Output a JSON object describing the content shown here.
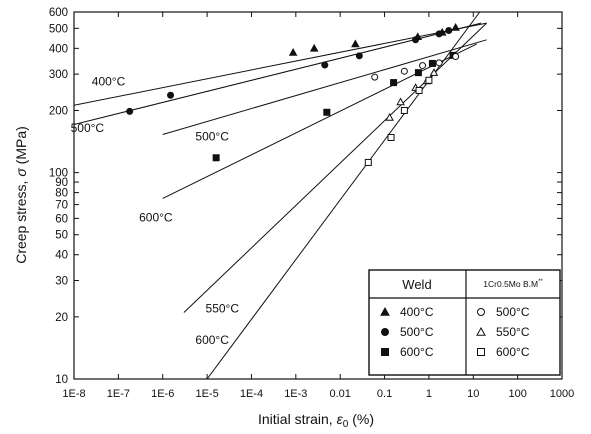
{
  "chart_data": {
    "type": "scatter",
    "xscale": "log",
    "yscale": "log",
    "xlim": [
      1e-08,
      1000
    ],
    "ylim": [
      10,
      600
    ],
    "xlabel_main": "Initial strain, ",
    "xlabel_symbol": "ε",
    "xlabel_sub": "0",
    "xlabel_unit": " (%)",
    "ylabel_main": "Creep stress, ",
    "ylabel_symbol": "σ",
    "ylabel_unit": " (MPa)",
    "x_ticks": [
      {
        "value": 1e-08,
        "label": "1E-8"
      },
      {
        "value": 1e-07,
        "label": "1E-7"
      },
      {
        "value": 1e-06,
        "label": "1E-6"
      },
      {
        "value": 1e-05,
        "label": "1E-5"
      },
      {
        "value": 0.0001,
        "label": "1E-4"
      },
      {
        "value": 0.001,
        "label": "1E-3"
      },
      {
        "value": 0.01,
        "label": "0.01"
      },
      {
        "value": 0.1,
        "label": "0.1"
      },
      {
        "value": 1,
        "label": "1"
      },
      {
        "value": 10,
        "label": "10"
      },
      {
        "value": 100,
        "label": "100"
      },
      {
        "value": 1000,
        "label": "1000"
      }
    ],
    "y_ticks": [
      {
        "value": 10,
        "label": "10"
      },
      {
        "value": 20,
        "label": "20"
      },
      {
        "value": 30,
        "label": "30"
      },
      {
        "value": 40,
        "label": "40"
      },
      {
        "value": 50,
        "label": "50"
      },
      {
        "value": 60,
        "label": "60"
      },
      {
        "value": 70,
        "label": "70"
      },
      {
        "value": 80,
        "label": "80"
      },
      {
        "value": 90,
        "label": "90"
      },
      {
        "value": 100,
        "label": "100"
      },
      {
        "value": 200,
        "label": "200"
      },
      {
        "value": 300,
        "label": "300"
      },
      {
        "value": 400,
        "label": "400"
      },
      {
        "value": 500,
        "label": "500"
      },
      {
        "value": 600,
        "label": "600"
      }
    ],
    "series": [
      {
        "name": "400°C",
        "group": "Weld",
        "marker": "triangle-filled",
        "points": [
          [
            0.00087,
            382
          ],
          [
            0.0026,
            400
          ],
          [
            0.022,
            420
          ],
          [
            0.56,
            455
          ],
          [
            2.0,
            478
          ],
          [
            4.0,
            505
          ]
        ]
      },
      {
        "name": "500°C",
        "group": "Weld",
        "marker": "circle-filled",
        "points": [
          [
            1.8e-07,
            198
          ],
          [
            1.5e-06,
            237
          ],
          [
            0.0045,
            332
          ],
          [
            0.027,
            368
          ],
          [
            0.5,
            440
          ],
          [
            1.7,
            470
          ],
          [
            2.8,
            488
          ]
        ]
      },
      {
        "name": "600°C",
        "group": "Weld",
        "marker": "square-filled",
        "points": [
          [
            1.6e-05,
            118
          ],
          [
            0.005,
            196
          ],
          [
            0.16,
            273
          ],
          [
            0.58,
            305
          ],
          [
            1.2,
            338
          ],
          [
            3.5,
            370
          ]
        ]
      },
      {
        "name": "500°C",
        "group": "1Cr0.5Mo B.M",
        "marker": "circle-open",
        "points": [
          [
            0.06,
            290
          ],
          [
            0.28,
            310
          ],
          [
            0.72,
            330
          ],
          [
            1.7,
            340
          ],
          [
            4.0,
            365
          ]
        ]
      },
      {
        "name": "550°C",
        "group": "1Cr0.5Mo B.M",
        "marker": "triangle-open",
        "points": [
          [
            0.13,
            185
          ],
          [
            0.23,
            220
          ],
          [
            0.5,
            258
          ],
          [
            0.9,
            278
          ],
          [
            1.3,
            305
          ]
        ]
      },
      {
        "name": "600°C",
        "group": "1Cr0.5Mo B.M",
        "marker": "square-open",
        "points": [
          [
            0.043,
            112
          ],
          [
            0.14,
            148
          ],
          [
            0.28,
            200
          ],
          [
            0.6,
            250
          ],
          [
            1.0,
            280
          ]
        ]
      }
    ],
    "fit_lines": [
      {
        "label": "400°C",
        "points": [
          [
            1e-08,
            212
          ],
          [
            20,
            530
          ]
        ]
      },
      {
        "label": "500°C",
        "points": [
          [
            1e-08,
            171
          ],
          [
            15,
            530
          ]
        ]
      },
      {
        "label": "500°C",
        "points": [
          [
            1e-06,
            153
          ],
          [
            20,
            440
          ]
        ]
      },
      {
        "label": "600°C",
        "points": [
          [
            1e-06,
            75
          ],
          [
            12,
            420
          ]
        ]
      },
      {
        "label": "550°C",
        "points": [
          [
            3e-06,
            21
          ],
          [
            20,
            530
          ]
        ]
      },
      {
        "label": "600°C",
        "points": [
          [
            1e-05,
            10
          ],
          [
            14,
            600
          ]
        ]
      }
    ],
    "curve_labels": [
      {
        "text": "400°C",
        "x": 6e-08,
        "y": 265
      },
      {
        "text": "500°C",
        "x": 2e-08,
        "y": 157
      },
      {
        "text": "500°C",
        "x": 1.3e-05,
        "y": 143
      },
      {
        "text": "600°C",
        "x": 7e-07,
        "y": 58
      },
      {
        "text": "550°C",
        "x": 2.2e-05,
        "y": 21
      },
      {
        "text": "600°C",
        "x": 1.3e-05,
        "y": 14.8
      }
    ],
    "legend": {
      "placement": "bottom-right",
      "header_weld": "Weld",
      "header_bm_main": "1Cr0.5Mo B.M",
      "header_bm_sup": "**"
    },
    "grid": false
  }
}
